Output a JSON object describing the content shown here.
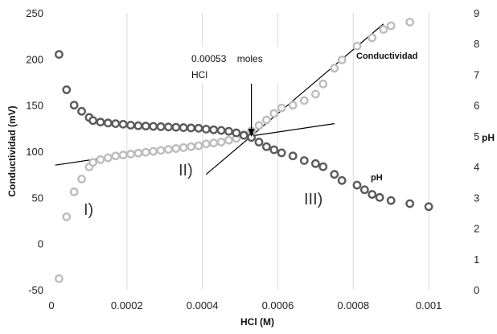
{
  "chart_data": {
    "type": "scatter",
    "title": "",
    "xlabel": "HCl (M)",
    "ylabel": "Conductividad (mV)",
    "y2label": "pH",
    "xlim": [
      0,
      0.0011
    ],
    "ylim": [
      -50,
      250
    ],
    "y2lim": [
      0,
      9
    ],
    "x_ticks": [
      "0",
      "0.0002",
      "0.0004",
      "0.0006",
      "0.0008",
      "0.001"
    ],
    "y_ticks": [
      "-50",
      "0",
      "50",
      "100",
      "150",
      "200",
      "250"
    ],
    "y2_ticks": [
      "0",
      "1",
      "2",
      "3",
      "4",
      "5",
      "6",
      "7",
      "8",
      "9"
    ],
    "grid": "vertical",
    "colors": {
      "conductividad": "#bdbdbd",
      "ph": "#5a5a5a",
      "grid": "#d9d9d9",
      "fit_line": "#000000"
    },
    "series": [
      {
        "name": "Conductividad",
        "axis": "left",
        "points": [
          [
            2e-05,
            -38
          ],
          [
            4e-05,
            29
          ],
          [
            6e-05,
            56
          ],
          [
            8e-05,
            70
          ],
          [
            0.0001,
            83
          ],
          [
            0.00011,
            88
          ],
          [
            0.00013,
            91
          ],
          [
            0.00015,
            93
          ],
          [
            0.00017,
            95
          ],
          [
            0.00019,
            96
          ],
          [
            0.00021,
            97
          ],
          [
            0.00023,
            98
          ],
          [
            0.00025,
            99
          ],
          [
            0.00027,
            100
          ],
          [
            0.00029,
            101
          ],
          [
            0.00031,
            102
          ],
          [
            0.00033,
            103
          ],
          [
            0.00035,
            104
          ],
          [
            0.00037,
            105
          ],
          [
            0.00039,
            106
          ],
          [
            0.00041,
            108
          ],
          [
            0.00043,
            109
          ],
          [
            0.00045,
            110
          ],
          [
            0.00047,
            112
          ],
          [
            0.00049,
            114
          ],
          [
            0.00051,
            118
          ],
          [
            0.00053,
            122
          ],
          [
            0.00055,
            128
          ],
          [
            0.00057,
            134
          ],
          [
            0.00059,
            141
          ],
          [
            0.00061,
            147
          ],
          [
            0.00064,
            150
          ],
          [
            0.00067,
            155
          ],
          [
            0.0007,
            162
          ],
          [
            0.00072,
            173
          ],
          [
            0.00075,
            190
          ],
          [
            0.00077,
            199
          ],
          [
            0.00081,
            214
          ],
          [
            0.00085,
            223
          ],
          [
            0.00088,
            232
          ],
          [
            0.0009,
            236
          ],
          [
            0.00095,
            240
          ]
        ]
      },
      {
        "name": "pH",
        "axis": "right",
        "points": [
          [
            2e-05,
            7.65
          ],
          [
            4e-05,
            6.5
          ],
          [
            6e-05,
            6.0
          ],
          [
            8e-05,
            5.8
          ],
          [
            0.0001,
            5.6
          ],
          [
            0.00011,
            5.5
          ],
          [
            0.00013,
            5.45
          ],
          [
            0.00015,
            5.42
          ],
          [
            0.00017,
            5.4
          ],
          [
            0.00019,
            5.38
          ],
          [
            0.00021,
            5.35
          ],
          [
            0.00023,
            5.33
          ],
          [
            0.00025,
            5.32
          ],
          [
            0.00027,
            5.31
          ],
          [
            0.00029,
            5.3
          ],
          [
            0.00031,
            5.29
          ],
          [
            0.00033,
            5.28
          ],
          [
            0.00035,
            5.27
          ],
          [
            0.00037,
            5.26
          ],
          [
            0.00039,
            5.25
          ],
          [
            0.00041,
            5.22
          ],
          [
            0.00043,
            5.2
          ],
          [
            0.00045,
            5.18
          ],
          [
            0.00047,
            5.15
          ],
          [
            0.00049,
            5.1
          ],
          [
            0.00051,
            5.02
          ],
          [
            0.00053,
            4.95
          ],
          [
            0.00055,
            4.8
          ],
          [
            0.00057,
            4.65
          ],
          [
            0.00059,
            4.55
          ],
          [
            0.00061,
            4.45
          ],
          [
            0.00064,
            4.35
          ],
          [
            0.00067,
            4.2
          ],
          [
            0.0007,
            4.1
          ],
          [
            0.00072,
            4.0
          ],
          [
            0.00075,
            3.75
          ],
          [
            0.00077,
            3.55
          ],
          [
            0.00081,
            3.4
          ],
          [
            0.00083,
            3.25
          ],
          [
            0.00085,
            3.1
          ],
          [
            0.00087,
            3.0
          ],
          [
            0.0009,
            2.9
          ],
          [
            0.00095,
            2.8
          ],
          [
            0.001,
            2.7
          ]
        ]
      }
    ],
    "fit_lines": [
      {
        "from": [
          1e-05,
          85
        ],
        "to": [
          0.00075,
          130
        ]
      },
      {
        "from": [
          0.00041,
          75
        ],
        "to": [
          0.00088,
          238
        ]
      }
    ],
    "annotations": {
      "series_label_conductividad": "Conductividad",
      "series_label_ph": "pH",
      "region_1": "I)",
      "region_2": "II)",
      "region_3": "III)",
      "equivalence_line1": "0.00053    moles",
      "equivalence_line2": "HCl",
      "equivalence_x": 0.00053,
      "equivalence_y": 114
    }
  }
}
